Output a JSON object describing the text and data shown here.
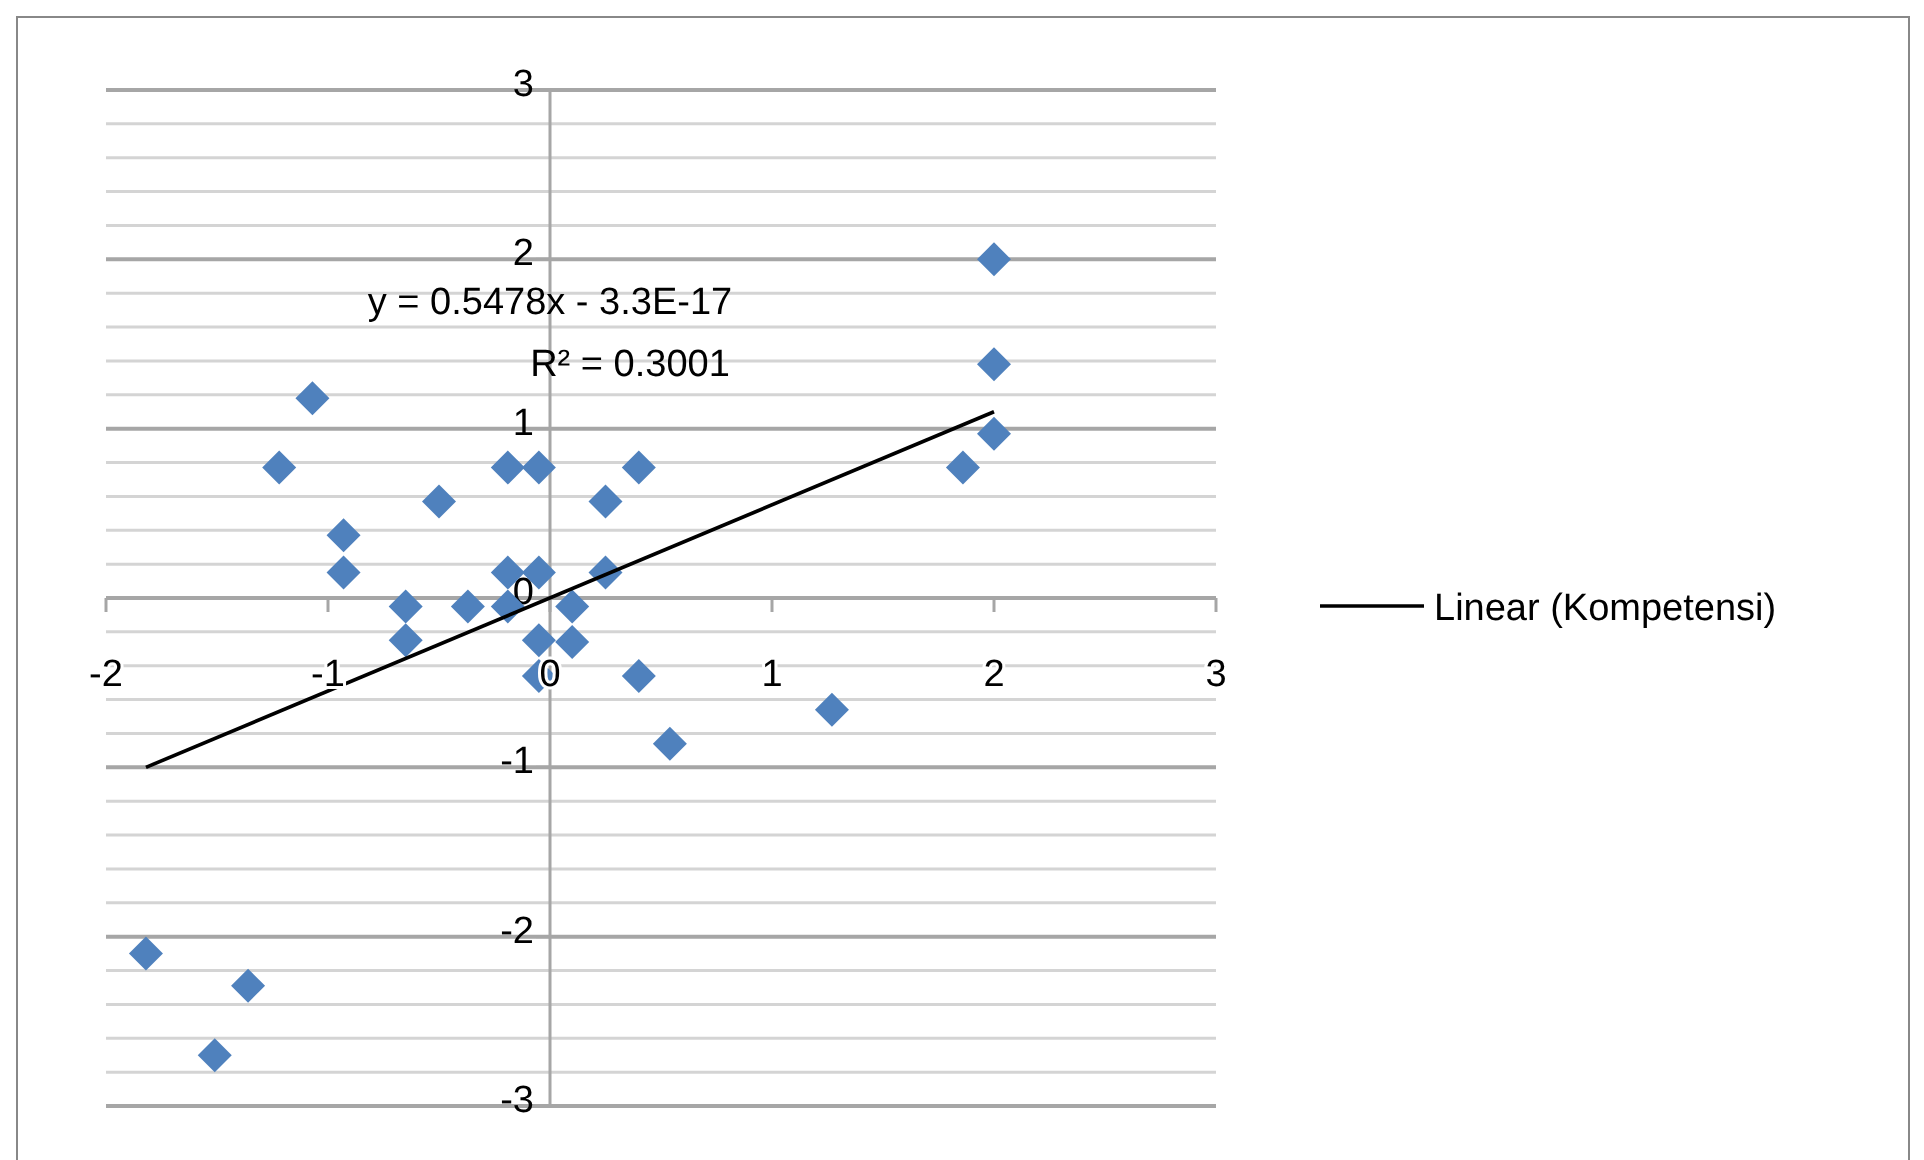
{
  "chart_data": {
    "type": "scatter",
    "xlim": [
      -2,
      3
    ],
    "xticks": [
      -2,
      -1,
      0,
      1,
      2,
      3
    ],
    "ylim": [
      -3,
      3
    ],
    "yticks": [
      -3,
      {
        "value": -2.8,
        "label": null
      },
      {
        "value": -2.6,
        "label": null
      },
      {
        "value": -2.4,
        "label": null
      },
      {
        "value": -2.2,
        "label": null
      },
      -2,
      {
        "value": -1.8,
        "label": null
      },
      {
        "value": -1.6,
        "label": null
      },
      {
        "value": -1.4,
        "label": null
      },
      {
        "value": -1.2,
        "label": null
      },
      -1,
      {
        "value": -0.8,
        "label": null
      },
      {
        "value": -0.6,
        "label": null
      },
      {
        "value": -0.4,
        "label": null
      },
      {
        "value": -0.2,
        "label": null
      },
      0,
      {
        "value": 0.2,
        "label": null
      },
      {
        "value": 0.4,
        "label": null
      },
      {
        "value": 0.6,
        "label": null
      },
      {
        "value": 0.8,
        "label": null
      },
      1,
      {
        "value": 1.2,
        "label": null
      },
      {
        "value": 1.4,
        "label": null
      },
      {
        "value": 1.6,
        "label": null
      },
      {
        "value": 1.8,
        "label": null
      },
      2,
      {
        "value": 2.2,
        "label": null
      },
      {
        "value": 2.4,
        "label": null
      },
      {
        "value": 2.6,
        "label": null
      },
      {
        "value": 2.8,
        "label": null
      },
      3
    ],
    "grid": "y",
    "legend": "right",
    "annotations": [
      "y = 0.5478x - 3.3E-17",
      "R² = 0.3001"
    ],
    "series": [
      {
        "color": "#4f81bd",
        "marker": "diamond",
        "x": [
          -1.07,
          -1.22,
          -0.93,
          -0.93,
          -0.5,
          -0.65,
          -0.65,
          -0.37,
          -0.19,
          -0.19,
          -0.05,
          0.1,
          0.25,
          0.25,
          0.4,
          -0.19,
          -0.05,
          -0.05,
          0.1,
          -0.05,
          0.4,
          -1.82,
          -1.36,
          -1.51,
          0.54,
          1.27,
          2.0,
          2.0,
          2.0,
          1.86
        ],
        "values": [
          1.18,
          0.77,
          0.37,
          0.15,
          0.57,
          -0.05,
          -0.25,
          -0.05,
          0.15,
          -0.05,
          0.15,
          -0.05,
          0.15,
          0.57,
          0.77,
          0.77,
          0.77,
          -0.25,
          -0.26,
          -0.46,
          -0.46,
          -2.1,
          -2.29,
          -2.7,
          -0.86,
          -0.66,
          2.0,
          1.38,
          0.97,
          0.77
        ]
      },
      {
        "type": "line",
        "name": "Linear (Kompetensi)",
        "color": "#000000",
        "x": [
          -1.82,
          2.0
        ],
        "values": [
          -1.0,
          1.1
        ],
        "marker": "none",
        "line_style": "solid"
      }
    ]
  }
}
